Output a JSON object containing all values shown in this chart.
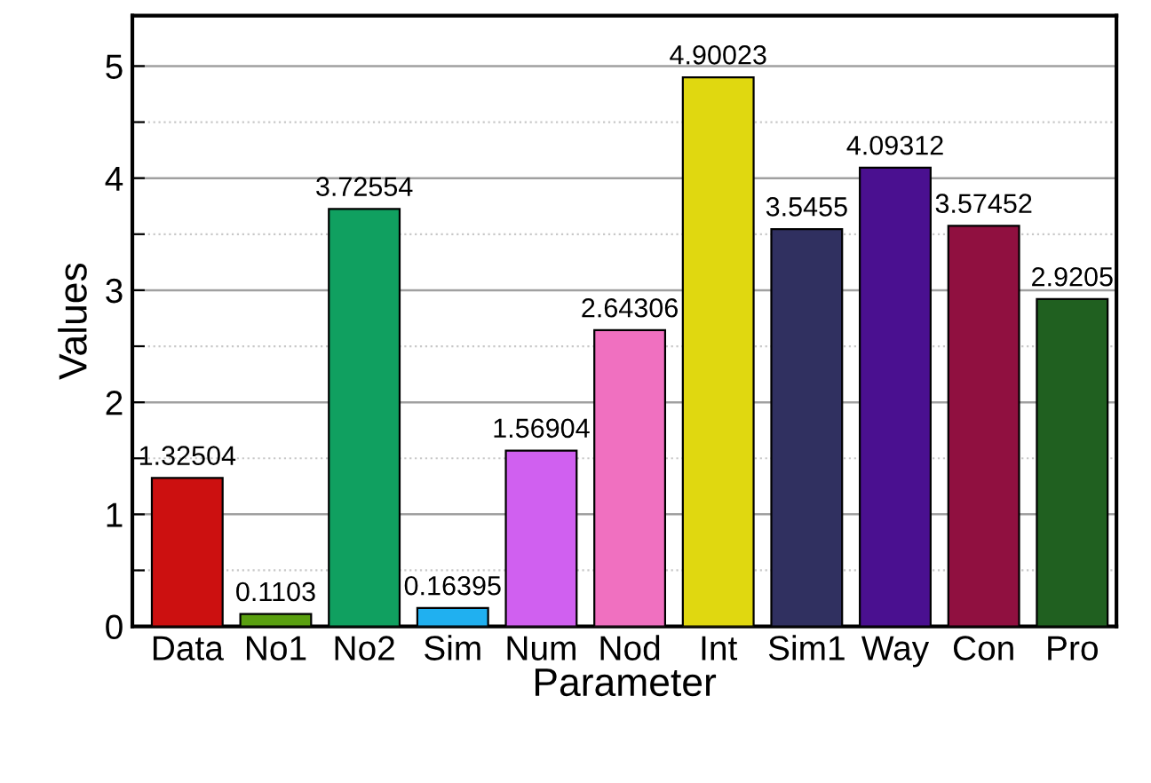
{
  "chart_data": {
    "type": "bar",
    "xlabel": "Parameter",
    "ylabel": "Values",
    "categories": [
      "Data",
      "No1",
      "No2",
      "Sim",
      "Num",
      "Nod",
      "Int",
      "Sim1",
      "Way",
      "Con",
      "Pro"
    ],
    "values": [
      1.32504,
      0.1103,
      3.72554,
      0.16395,
      1.56904,
      2.64306,
      4.90023,
      3.5455,
      4.09312,
      3.57452,
      2.9205
    ],
    "colors": [
      "#cc1010",
      "#5aa010",
      "#10a060",
      "#20b0f0",
      "#d060f0",
      "#f070c0",
      "#e0d810",
      "#303060",
      "#4a1090",
      "#901040",
      "#206020"
    ],
    "data_labels": true,
    "ylim": [
      0,
      5.45
    ],
    "yticks": [
      0,
      {
        "value": 0.5,
        "label": null
      },
      1,
      {
        "value": 1.5,
        "label": null
      },
      2,
      {
        "value": 2.5,
        "label": null
      },
      3,
      {
        "value": 3.5,
        "label": null
      },
      4,
      {
        "value": 4.5,
        "label": null
      },
      5
    ],
    "grid": "y"
  }
}
